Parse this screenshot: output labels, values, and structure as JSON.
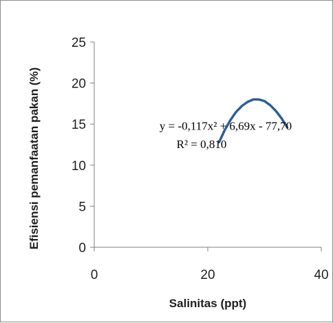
{
  "chart_data": {
    "type": "line",
    "title": "",
    "xlabel": "Salinitas (ppt)",
    "ylabel": "Efisiensi pemanfaatan pakan (%)",
    "xlim": [
      0,
      40
    ],
    "ylim": [
      0,
      25
    ],
    "xticks": [
      "0",
      "20",
      "40"
    ],
    "yticks": [
      "0",
      "5",
      "10",
      "15",
      "20",
      "25"
    ],
    "grid": false,
    "legend": "none",
    "series": [
      {
        "name": "",
        "color": "#2e5d9a",
        "x": [
          22,
          23,
          24,
          25,
          26,
          27,
          28,
          29,
          30,
          31,
          32,
          33,
          34
        ],
        "y": [
          12.8,
          14.3,
          15.5,
          16.5,
          17.2,
          17.7,
          18.0,
          18.0,
          17.8,
          17.3,
          16.6,
          15.7,
          14.6
        ]
      }
    ],
    "annotations": [
      {
        "text": "y = -0,117x² + 6,69x - 77,70",
        "x": 11.5,
        "y": 14.8
      },
      {
        "text": "R² = 0,810",
        "x": 14.5,
        "y": 12.6
      }
    ]
  }
}
